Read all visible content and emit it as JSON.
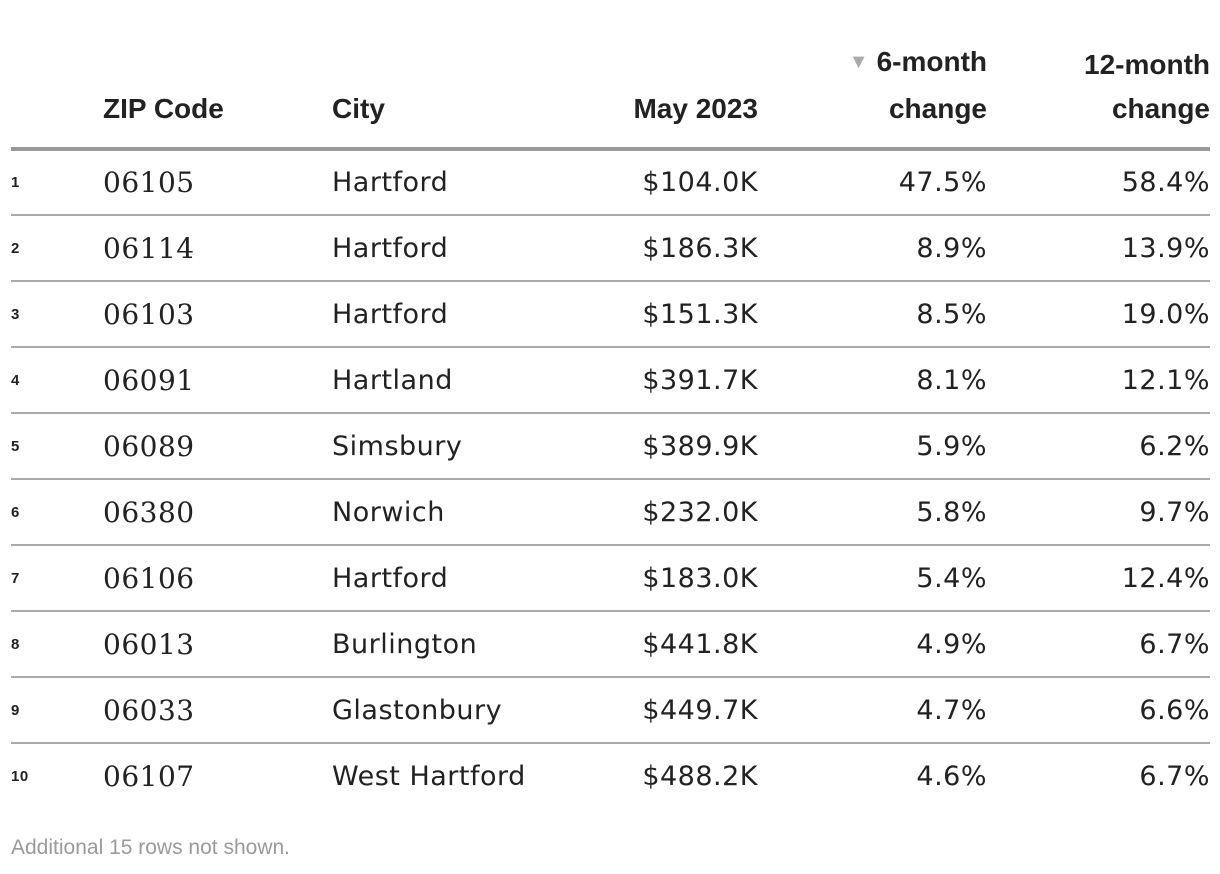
{
  "table": {
    "headers": {
      "rank": "",
      "zip": "ZIP Code",
      "city": "City",
      "value": "May 2023",
      "six_month_line1": "6-month",
      "six_month_line2": "change",
      "twelve_month_line1": "12-month",
      "twelve_month_line2": "change"
    },
    "sort_indicator": "▼",
    "rows": [
      {
        "rank": "1",
        "zip": "06105",
        "city": "Hartford",
        "value": "$104.0K",
        "six_month": "47.5%",
        "twelve_month": "58.4%"
      },
      {
        "rank": "2",
        "zip": "06114",
        "city": "Hartford",
        "value": "$186.3K",
        "six_month": "8.9%",
        "twelve_month": "13.9%"
      },
      {
        "rank": "3",
        "zip": "06103",
        "city": "Hartford",
        "value": "$151.3K",
        "six_month": "8.5%",
        "twelve_month": "19.0%"
      },
      {
        "rank": "4",
        "zip": "06091",
        "city": "Hartland",
        "value": "$391.7K",
        "six_month": "8.1%",
        "twelve_month": "12.1%"
      },
      {
        "rank": "5",
        "zip": "06089",
        "city": "Simsbury",
        "value": "$389.9K",
        "six_month": "5.9%",
        "twelve_month": "6.2%"
      },
      {
        "rank": "6",
        "zip": "06380",
        "city": "Norwich",
        "value": "$232.0K",
        "six_month": "5.8%",
        "twelve_month": "9.7%"
      },
      {
        "rank": "7",
        "zip": "06106",
        "city": "Hartford",
        "value": "$183.0K",
        "six_month": "5.4%",
        "twelve_month": "12.4%"
      },
      {
        "rank": "8",
        "zip": "06013",
        "city": "Burlington",
        "value": "$441.8K",
        "six_month": "4.9%",
        "twelve_month": "6.7%"
      },
      {
        "rank": "9",
        "zip": "06033",
        "city": "Glastonbury",
        "value": "$449.7K",
        "six_month": "4.7%",
        "twelve_month": "6.6%"
      },
      {
        "rank": "10",
        "zip": "06107",
        "city": "West Hartford",
        "value": "$488.2K",
        "six_month": "4.6%",
        "twelve_month": "6.7%"
      }
    ]
  },
  "footnote": "Additional 15 rows not shown."
}
